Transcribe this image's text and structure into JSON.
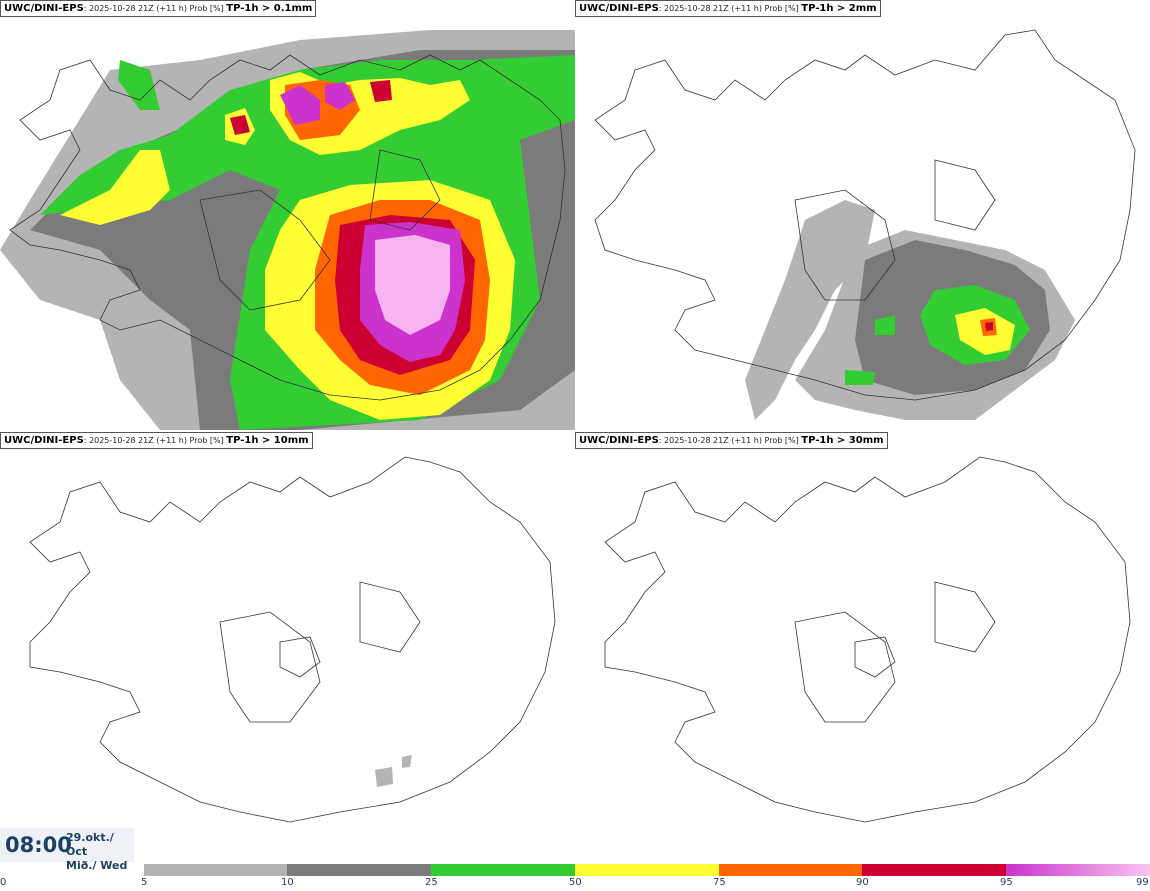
{
  "panels": [
    {
      "model": "UWC/DINI-EPS",
      "info": "2025-10-28 21Z (+11 h) Prob [%]",
      "product": "TP-1h > 0.1mm"
    },
    {
      "model": "UWC/DINI-EPS",
      "info": "2025-10-28 21Z (+11 h) Prob [%]",
      "product": "TP-1h > 2mm"
    },
    {
      "model": "UWC/DINI-EPS",
      "info": "2025-10-28 21Z (+11 h) Prob [%]",
      "product": "TP-1h > 10mm"
    },
    {
      "model": "UWC/DINI-EPS",
      "info": "2025-10-28 21Z (+11 h) Prob [%]",
      "product": "TP-1h > 30mm"
    }
  ],
  "valid_time": {
    "time": "08:00",
    "date": "29.okt./ Oct",
    "day": "Mið./ Wed"
  },
  "colorbar": {
    "ticks": [
      "0",
      "5",
      "10",
      "25",
      "50",
      "75",
      "90",
      "95",
      "99"
    ],
    "colors": [
      "#ffffff",
      "#b4b4b4",
      "#7b7b7b",
      "#33cc33",
      "#ffff33",
      "#ff6600",
      "#cc0033",
      "#cc33cc"
    ]
  }
}
